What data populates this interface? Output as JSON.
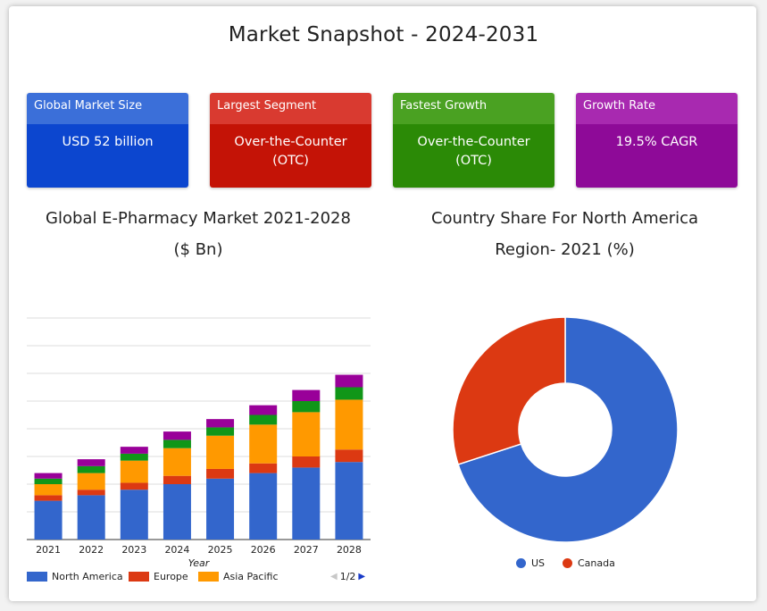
{
  "page": {
    "title": "Market Snapshot - 2024-2031"
  },
  "kpis": [
    {
      "label": "Global Market Size",
      "value": "USD 52 billion",
      "head_color": "#3b6fd9",
      "body_color": "#0c46cf"
    },
    {
      "label": "Largest Segment",
      "value": "Over-the-Counter (OTC)",
      "head_color": "#d93a30",
      "body_color": "#c41306"
    },
    {
      "label": "Fastest Growth",
      "value": "Over-the-Counter (OTC)",
      "head_color": "#4aa122",
      "body_color": "#2b8a06"
    },
    {
      "label": "Growth Rate",
      "value": "19.5% CAGR",
      "head_color": "#a829b0",
      "body_color": "#8e0a98"
    }
  ],
  "bar_chart_title": [
    "Global E-Pharmacy Market 2021-2028",
    "($ Bn)"
  ],
  "donut_chart_title": [
    "Country Share For North America",
    "Region- 2021 (%)"
  ],
  "chart_data": [
    {
      "type": "bar",
      "stacked": true,
      "title": "Global E-Pharmacy Market 2021-2028 ($ Bn)",
      "xlabel": "Year",
      "categories": [
        "2021",
        "2022",
        "2023",
        "2024",
        "2025",
        "2026",
        "2027",
        "2028"
      ],
      "ylim": [
        0,
        80
      ],
      "grid": true,
      "y_ticks_shown": false,
      "legend_position": "bottom",
      "series": [
        {
          "name": "North America",
          "color": "#3366cc",
          "values": [
            14,
            16,
            18,
            20,
            22,
            24,
            26,
            28
          ]
        },
        {
          "name": "Europe",
          "color": "#dc3912",
          "values": [
            2,
            2,
            2.5,
            3,
            3.5,
            3.5,
            4,
            4.5
          ]
        },
        {
          "name": "Asia Pacific",
          "color": "#ff9900",
          "values": [
            4,
            6,
            8,
            10,
            12,
            14,
            16,
            18
          ]
        },
        {
          "name": "",
          "color": "#109618",
          "values": [
            2,
            2.5,
            2.5,
            3,
            3,
            3.5,
            4,
            4.5
          ]
        },
        {
          "name": "",
          "color": "#990099",
          "values": [
            2,
            2.5,
            2.5,
            3,
            3,
            3.5,
            4,
            4.5
          ]
        }
      ],
      "legend_page": "1/2"
    },
    {
      "type": "pie",
      "donut": true,
      "title": "Country Share For North America Region- 2021 (%)",
      "labels": [
        "US",
        "Canada"
      ],
      "values": [
        70,
        30
      ],
      "colors": [
        "#3366cc",
        "#dc3912"
      ],
      "legend_position": "bottom"
    }
  ]
}
